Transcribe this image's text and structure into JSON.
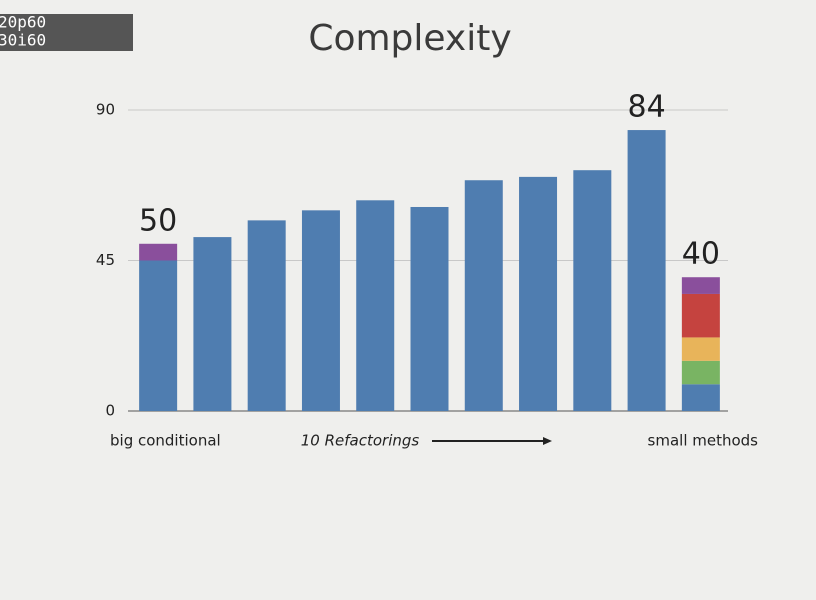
{
  "overlay": [
    "20p60",
    "30i60"
  ],
  "chart_data": {
    "type": "stacked-bar",
    "title": "Complexity",
    "categories": [
      null,
      null,
      null,
      null,
      null,
      null,
      null,
      null,
      null,
      null,
      null
    ],
    "series": [
      {
        "color": "#4f7db0",
        "values": [
          45,
          52,
          57,
          60,
          63,
          61,
          69,
          70,
          72,
          84,
          8
        ]
      },
      {
        "color": "#79b463",
        "values": [
          null,
          null,
          null,
          null,
          null,
          null,
          null,
          null,
          null,
          null,
          7
        ]
      },
      {
        "color": "#e8b45a",
        "values": [
          null,
          null,
          null,
          null,
          null,
          null,
          null,
          null,
          null,
          null,
          7
        ]
      },
      {
        "color": "#c5433f",
        "values": [
          null,
          null,
          null,
          null,
          null,
          null,
          null,
          null,
          null,
          null,
          13
        ]
      },
      {
        "color": "#8a4f9c",
        "values": [
          5,
          null,
          null,
          null,
          null,
          null,
          null,
          null,
          null,
          null,
          5
        ]
      }
    ],
    "totals": [
      50,
      null,
      null,
      null,
      null,
      null,
      null,
      null,
      null,
      84,
      40
    ],
    "annotations": [
      "big conditional",
      "10 Refactorings",
      "small methods"
    ],
    "ylim": [
      0,
      90
    ],
    "yticks": [
      0,
      45,
      90
    ],
    "grid": true
  }
}
